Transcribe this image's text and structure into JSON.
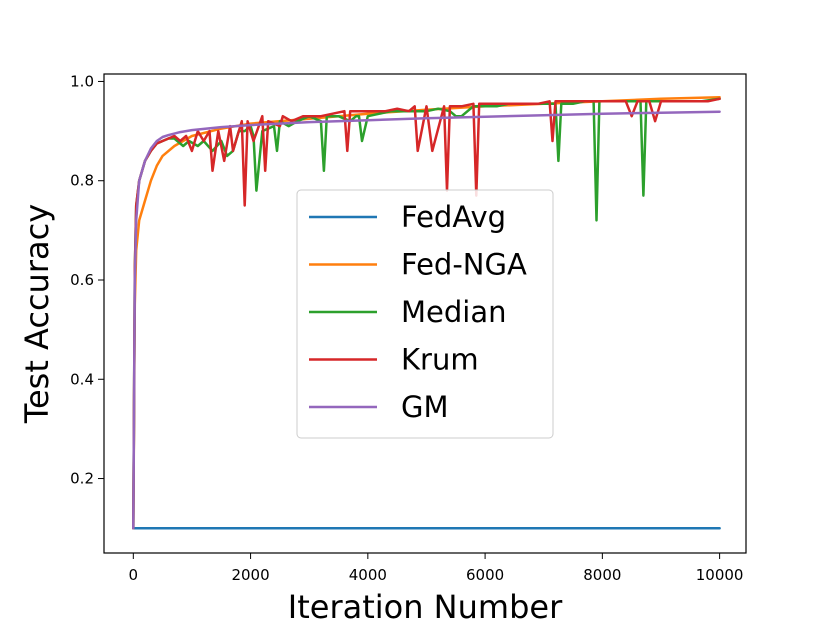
{
  "chart_data": {
    "type": "line",
    "xlabel": "Iteration Number",
    "ylabel": "Test Accuracy",
    "xlim": [
      -500,
      10450
    ],
    "ylim": [
      0.05,
      1.015
    ],
    "x_ticks": [
      0,
      2000,
      4000,
      6000,
      8000,
      10000
    ],
    "x_tick_labels": [
      "0",
      "2000",
      "4000",
      "6000",
      "8000",
      "10000"
    ],
    "y_ticks": [
      0.2,
      0.4,
      0.6,
      0.8,
      1.0
    ],
    "y_tick_labels": [
      "0.2",
      "0.4",
      "0.6",
      "0.8",
      "1.0"
    ],
    "grid": false,
    "legend_position": "center",
    "series": [
      {
        "name": "FedAvg",
        "color": "#1f77b4",
        "x": [
          0,
          20,
          10000
        ],
        "y": [
          0.1,
          0.1,
          0.1
        ]
      },
      {
        "name": "Fed-NGA",
        "color": "#ff7f0e",
        "x": [
          0,
          25,
          50,
          100,
          200,
          300,
          400,
          500,
          700,
          1000,
          1500,
          2000,
          3000,
          4000,
          5000,
          6000,
          7000,
          8000,
          9000,
          10000
        ],
        "y": [
          0.1,
          0.55,
          0.66,
          0.72,
          0.76,
          0.8,
          0.83,
          0.85,
          0.87,
          0.89,
          0.905,
          0.915,
          0.925,
          0.935,
          0.943,
          0.95,
          0.955,
          0.96,
          0.965,
          0.968
        ]
      },
      {
        "name": "Median",
        "color": "#2ca02c",
        "x": [
          0,
          25,
          50,
          100,
          200,
          300,
          400,
          500,
          600,
          700,
          750,
          850,
          950,
          1100,
          1200,
          1350,
          1500,
          1600,
          1700,
          1800,
          1900,
          2000,
          2050,
          2100,
          2200,
          2400,
          2450,
          2500,
          2650,
          2800,
          3000,
          3200,
          3250,
          3300,
          3500,
          3700,
          3800,
          3850,
          3900,
          4000,
          4200,
          4400,
          4600,
          4800,
          5000,
          5200,
          5400,
          5500,
          5600,
          5700,
          5800,
          6000,
          6200,
          6400,
          6600,
          6800,
          7000,
          7200,
          7250,
          7300,
          7500,
          7700,
          7850,
          7900,
          7950,
          8100,
          8300,
          8500,
          8650,
          8700,
          8750,
          8900,
          9100,
          9300,
          9500,
          9700,
          10000
        ],
        "y": [
          0.1,
          0.62,
          0.75,
          0.8,
          0.84,
          0.86,
          0.875,
          0.88,
          0.885,
          0.885,
          0.88,
          0.87,
          0.88,
          0.87,
          0.88,
          0.86,
          0.88,
          0.85,
          0.86,
          0.9,
          0.9,
          0.91,
          0.89,
          0.78,
          0.9,
          0.91,
          0.86,
          0.92,
          0.91,
          0.92,
          0.93,
          0.92,
          0.82,
          0.93,
          0.93,
          0.92,
          0.93,
          0.93,
          0.88,
          0.93,
          0.935,
          0.94,
          0.94,
          0.94,
          0.94,
          0.945,
          0.94,
          0.93,
          0.93,
          0.94,
          0.95,
          0.95,
          0.95,
          0.955,
          0.955,
          0.955,
          0.955,
          0.955,
          0.84,
          0.955,
          0.955,
          0.96,
          0.96,
          0.72,
          0.96,
          0.96,
          0.96,
          0.96,
          0.96,
          0.77,
          0.96,
          0.96,
          0.96,
          0.96,
          0.96,
          0.96,
          0.965
        ]
      },
      {
        "name": "Krum",
        "color": "#d62728",
        "x": [
          0,
          25,
          50,
          100,
          200,
          300,
          400,
          500,
          600,
          700,
          800,
          900,
          1000,
          1100,
          1200,
          1300,
          1350,
          1450,
          1550,
          1650,
          1700,
          1850,
          1900,
          1950,
          2050,
          2200,
          2250,
          2300,
          2500,
          2550,
          2700,
          2900,
          3000,
          3200,
          3400,
          3600,
          3650,
          3700,
          3900,
          4000,
          4300,
          4500,
          4700,
          4800,
          4850,
          5000,
          5100,
          5300,
          5350,
          5400,
          5600,
          5800,
          5850,
          5900,
          6100,
          6300,
          6500,
          6700,
          6900,
          7100,
          7150,
          7200,
          7400,
          7600,
          7800,
          8000,
          8200,
          8400,
          8500,
          8600,
          8800,
          8900,
          9000,
          9200,
          9400,
          9600,
          9800,
          10000
        ],
        "y": [
          0.1,
          0.62,
          0.75,
          0.8,
          0.84,
          0.86,
          0.875,
          0.88,
          0.885,
          0.89,
          0.88,
          0.89,
          0.86,
          0.9,
          0.88,
          0.9,
          0.82,
          0.9,
          0.84,
          0.91,
          0.86,
          0.92,
          0.75,
          0.92,
          0.88,
          0.93,
          0.82,
          0.92,
          0.91,
          0.93,
          0.92,
          0.93,
          0.93,
          0.93,
          0.935,
          0.94,
          0.86,
          0.94,
          0.94,
          0.94,
          0.94,
          0.945,
          0.94,
          0.95,
          0.86,
          0.95,
          0.86,
          0.95,
          0.78,
          0.95,
          0.95,
          0.955,
          0.77,
          0.955,
          0.955,
          0.955,
          0.955,
          0.955,
          0.955,
          0.96,
          0.88,
          0.96,
          0.96,
          0.96,
          0.96,
          0.96,
          0.96,
          0.96,
          0.93,
          0.96,
          0.96,
          0.92,
          0.96,
          0.96,
          0.96,
          0.96,
          0.96,
          0.965
        ]
      },
      {
        "name": "GM",
        "color": "#9467bd",
        "x": [
          0,
          25,
          50,
          100,
          200,
          300,
          400,
          500,
          600,
          700,
          800,
          1000,
          1500,
          2000,
          2500,
          3000,
          4000,
          5000,
          6000,
          7000,
          8000,
          9000,
          10000
        ],
        "y": [
          0.1,
          0.6,
          0.72,
          0.8,
          0.84,
          0.865,
          0.88,
          0.888,
          0.892,
          0.895,
          0.898,
          0.902,
          0.908,
          0.912,
          0.915,
          0.918,
          0.922,
          0.926,
          0.929,
          0.932,
          0.935,
          0.937,
          0.939
        ]
      }
    ]
  }
}
